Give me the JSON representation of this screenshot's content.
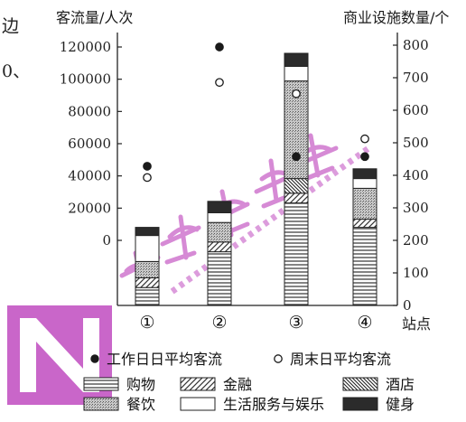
{
  "page_fragments": [
    "边",
    "0、"
  ],
  "chart_data": {
    "type": "bar",
    "subtype": "stacked bar with scatter overlay, dual y-axis",
    "y_left_label": "客流量/人次",
    "y_right_label": "商业设施数量/个",
    "x_label": "站点",
    "categories": [
      "①",
      "②",
      "③",
      "④"
    ],
    "y_left_ticks": [
      "0",
      "20000",
      "40000",
      "60000",
      "80000",
      "100000",
      "120000"
    ],
    "y_left_range": [
      0,
      120000
    ],
    "y_right_ticks": [
      "0",
      "100",
      "200",
      "300",
      "400",
      "500",
      "600",
      "700",
      "800"
    ],
    "y_right_range": [
      0,
      800
    ],
    "bar_series": [
      {
        "name": "购物",
        "pattern": "hlines",
        "values": [
          55,
          165,
          315,
          240
        ]
      },
      {
        "name": "金融",
        "pattern": "diag",
        "values": [
          30,
          30,
          30,
          25
        ]
      },
      {
        "name": "酒店",
        "pattern": "diag-back",
        "values": [
          0,
          0,
          45,
          0
        ]
      },
      {
        "name": "餐饮",
        "pattern": "dots",
        "values": [
          50,
          60,
          300,
          95
        ]
      },
      {
        "name": "生活服务与娱乐",
        "pattern": "blank",
        "values": [
          80,
          30,
          45,
          30
        ]
      },
      {
        "name": "健身",
        "pattern": "dark",
        "values": [
          25,
          35,
          40,
          30
        ]
      }
    ],
    "scatter_series": [
      {
        "name": "工作日日平均客流",
        "marker": "filled",
        "values": [
          46000,
          120000,
          52000,
          52000
        ]
      },
      {
        "name": "周末日平均客流",
        "marker": "open",
        "values": [
          39000,
          98000,
          91000,
          63000
        ]
      }
    ],
    "legend": {
      "row1": [
        "工作日日平均客流",
        "周末日平均客流"
      ],
      "row2": [
        "购物",
        "金融",
        "酒店"
      ],
      "row3": [
        "餐饮",
        "生活服务与娱乐",
        "健身"
      ]
    }
  }
}
